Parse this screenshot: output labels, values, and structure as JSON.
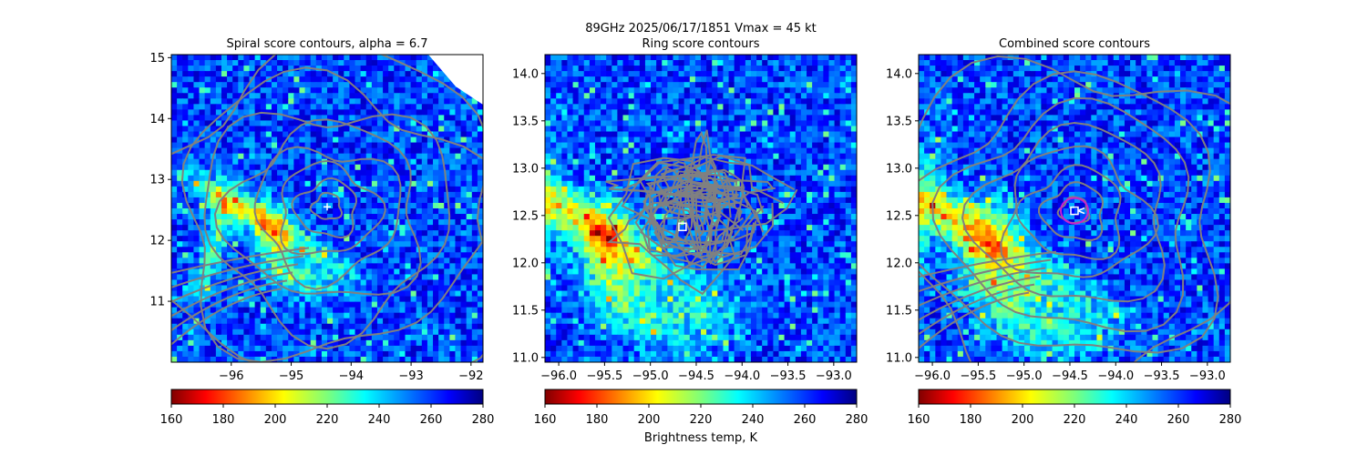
{
  "figure": {
    "suptitle_line1": "89GHz  2025/06/17/1851    Vmax = 45 kt",
    "colorbar_label": "Brightness temp, K"
  },
  "colors": {
    "contour": "#808080",
    "center_marker": "#ffffff",
    "ring_circle": "#cc22cc",
    "axes": "#000000"
  },
  "colorbar": {
    "cmap": "jet_r",
    "min": 160,
    "max": 280,
    "ticks": [
      "160",
      "180",
      "200",
      "220",
      "240",
      "260",
      "280"
    ]
  },
  "chart_data": [
    {
      "type": "heatmap",
      "title": "Spiral score contours, alpha =  6.7",
      "xlabel": "",
      "ylabel": "",
      "xlim": [
        -97.0,
        -91.8
      ],
      "ylim": [
        10.0,
        15.05
      ],
      "xticks": [
        "-96",
        "-95",
        "-94",
        "-93",
        "-92"
      ],
      "yticks": [
        "11",
        "12",
        "13",
        "14",
        "15"
      ],
      "center_marker": {
        "symbol": "+",
        "lon": -94.4,
        "lat": 12.55
      },
      "contours": {
        "color": "gray",
        "center_lon": -94.4,
        "center_lat": 12.55
      },
      "colorbar": "Brightness temp, K"
    },
    {
      "type": "heatmap",
      "title": "Ring score contours",
      "xlabel": "",
      "ylabel": "",
      "xlim": [
        -96.15,
        -92.75
      ],
      "ylim": [
        10.95,
        14.2
      ],
      "xticks": [
        "-96.0",
        "-95.5",
        "-95.0",
        "-94.5",
        "-94.0",
        "-93.5",
        "-93.0"
      ],
      "yticks": [
        "11.0",
        "11.5",
        "12.0",
        "12.5",
        "13.0",
        "13.5",
        "14.0"
      ],
      "center_marker": {
        "symbol": "square",
        "lon": -94.65,
        "lat": 12.38
      },
      "contours": {
        "color": "gray",
        "center_lon": -94.55,
        "center_lat": 12.6
      },
      "colorbar": "Brightness temp, K"
    },
    {
      "type": "heatmap",
      "title": "Combined score contours",
      "xlabel": "",
      "ylabel": "",
      "xlim": [
        -96.15,
        -92.75
      ],
      "ylim": [
        10.95,
        14.2
      ],
      "xticks": [
        "-96.0",
        "-95.5",
        "-95.0",
        "-94.5",
        "-94.0",
        "-93.5",
        "-93.0"
      ],
      "yticks": [
        "11.0",
        "11.5",
        "12.0",
        "12.5",
        "13.0",
        "13.5",
        "14.0"
      ],
      "center_marker": {
        "symbol": "square",
        "lon": -94.45,
        "lat": 12.55
      },
      "contours": {
        "color": "gray",
        "center_lon": -94.45,
        "center_lat": 12.55
      },
      "colorbar": "Brightness temp, K"
    }
  ]
}
